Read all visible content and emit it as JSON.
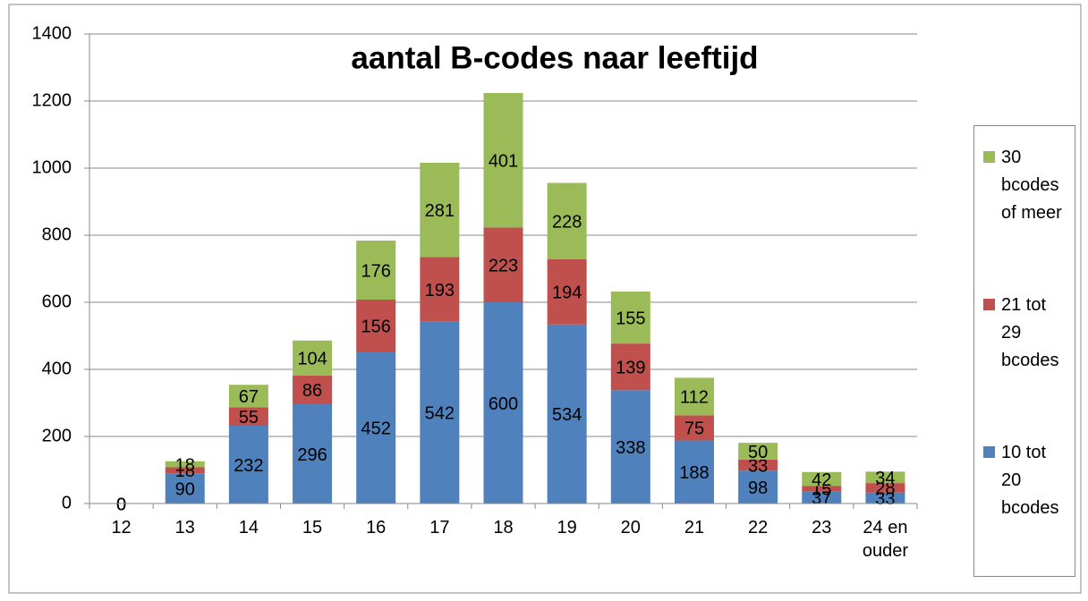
{
  "chart_data": {
    "type": "stacked_bar",
    "title": "aantal B-codes naar leeftijd",
    "categories": [
      "12",
      "13",
      "14",
      "15",
      "16",
      "17",
      "18",
      "19",
      "20",
      "21",
      "22",
      "23",
      "24 en ouder"
    ],
    "series": [
      {
        "name": "10 tot 20 bcodes",
        "color": "#4f81bd",
        "values": [
          0,
          90,
          232,
          296,
          452,
          542,
          600,
          534,
          338,
          188,
          98,
          37,
          33
        ]
      },
      {
        "name": "21 tot 29 bcodes",
        "color": "#c0504d",
        "values": [
          0,
          18,
          55,
          86,
          156,
          193,
          223,
          194,
          139,
          75,
          33,
          15,
          28
        ]
      },
      {
        "name": "30 bcodes of meer",
        "color": "#9bbb59",
        "values": [
          0,
          18,
          67,
          104,
          176,
          281,
          401,
          228,
          155,
          112,
          50,
          42,
          34
        ]
      }
    ],
    "ylim": [
      0,
      1400
    ],
    "yticks": [
      0,
      200,
      400,
      600,
      800,
      1000,
      1200,
      1400
    ],
    "grid": true,
    "legend": "right"
  }
}
